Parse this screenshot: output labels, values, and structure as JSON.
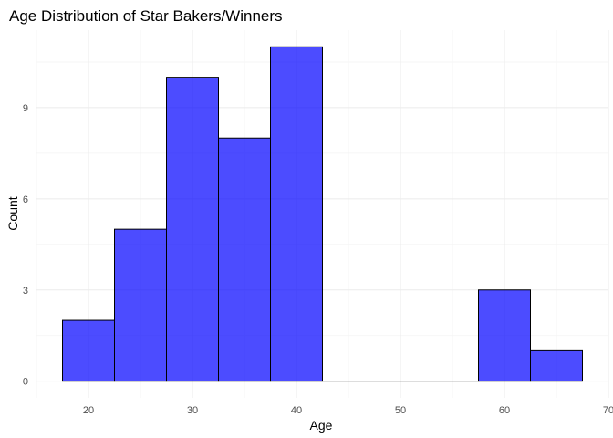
{
  "chart_data": {
    "type": "bar",
    "title": "Age Distribution of Star Bakers/Winners",
    "xlabel": "Age",
    "ylabel": "Count",
    "bin_width": 5,
    "bins": [
      {
        "start": 17.5,
        "end": 22.5,
        "count": 2
      },
      {
        "start": 22.5,
        "end": 27.5,
        "count": 5
      },
      {
        "start": 27.5,
        "end": 32.5,
        "count": 10
      },
      {
        "start": 32.5,
        "end": 37.5,
        "count": 8
      },
      {
        "start": 37.5,
        "end": 42.5,
        "count": 11
      },
      {
        "start": 42.5,
        "end": 47.5,
        "count": 0
      },
      {
        "start": 47.5,
        "end": 52.5,
        "count": 0
      },
      {
        "start": 52.5,
        "end": 57.5,
        "count": 0
      },
      {
        "start": 57.5,
        "end": 62.5,
        "count": 3
      },
      {
        "start": 62.5,
        "end": 67.5,
        "count": 1
      }
    ],
    "xlim": [
      15.0,
      70.0
    ],
    "ylim": [
      -0.55,
      11.55
    ],
    "x_ticks": [
      20,
      30,
      40,
      50,
      60,
      70
    ],
    "y_ticks": [
      0,
      3,
      6,
      9
    ],
    "bar_fill": "#0000ff",
    "bar_fill_opacity": 0.7,
    "bar_outline": "#000000",
    "grid": true,
    "background": "#ffffff"
  }
}
